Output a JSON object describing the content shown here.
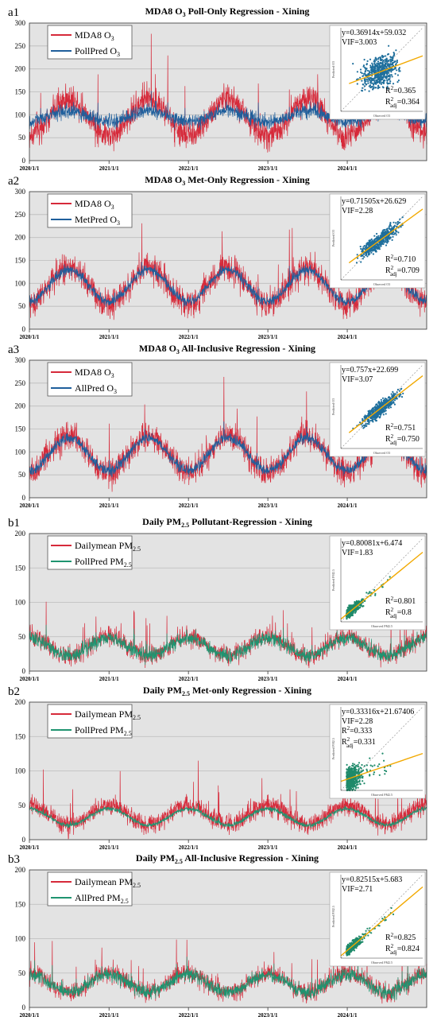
{
  "colors": {
    "plot_bg": "#e3e3e3",
    "grid": "#bcbcbc",
    "observed": "#d62a3a",
    "pred_blue": "#1f5f9c",
    "pred_green": "#1f9470",
    "scatter_blue": "#1f6f9c",
    "scatter_green": "#1f8a6a",
    "fit_line": "#f2a900",
    "ref_line": "#888888"
  },
  "x_ticks": [
    "2020/1/1",
    "2021/1/1",
    "2022/1/1",
    "2023/1/1",
    "2024/1/1"
  ],
  "chart_data": [
    {
      "panel_label": "a1",
      "type": "line",
      "title_parts": [
        "MDA8 O",
        "3",
        " Poll-Only Regression - Xining"
      ],
      "ylim": [
        0,
        300
      ],
      "yticks": [
        "0",
        "50",
        "100",
        "150",
        "200",
        "250",
        "300"
      ],
      "x_range": [
        "2020/1/1",
        "2024/12/31"
      ],
      "series": [
        {
          "legend": [
            "MDA8 O",
            "3",
            ""
          ],
          "color": "observed"
        },
        {
          "legend": [
            "PollPred O",
            "3",
            ""
          ],
          "color": "pred_blue"
        }
      ],
      "observed_profile": {
        "mean": 95,
        "amplitude": 40,
        "peak_month": 6,
        "noise": 22
      },
      "pred_profile": {
        "mean": 97,
        "amplitude": 12,
        "peak_month": 6,
        "noise": 14
      },
      "inset": {
        "equation": "y=0.36914x+59.032",
        "vif": "VIF=3.003",
        "r2": [
          "R",
          "2",
          "=0.365"
        ],
        "r2adj": [
          "R",
          "2",
          "adj",
          "=0.364"
        ],
        "xlabel": "Observed O3",
        "ylabel": "Predicted O3",
        "slope": 0.36914,
        "intercept": 59.032,
        "axis_max": 200,
        "scatter": 0.365,
        "color": "scatter_blue"
      }
    },
    {
      "panel_label": "a2",
      "type": "line",
      "title_parts": [
        "MDA8 O",
        "3",
        " Met-Only Regression - Xining"
      ],
      "ylim": [
        0,
        300
      ],
      "yticks": [
        "0",
        "50",
        "100",
        "150",
        "200",
        "250",
        "300"
      ],
      "x_range": [
        "2020/1/1",
        "2024/12/31"
      ],
      "series": [
        {
          "legend": [
            "MDA8 O",
            "3",
            ""
          ],
          "color": "observed"
        },
        {
          "legend": [
            "MetPred O",
            "3",
            ""
          ],
          "color": "pred_blue"
        }
      ],
      "observed_profile": {
        "mean": 95,
        "amplitude": 40,
        "peak_month": 6,
        "noise": 22
      },
      "pred_profile": {
        "mean": 95,
        "amplitude": 35,
        "peak_month": 6,
        "noise": 10
      },
      "inset": {
        "equation": "y=0.71505x+26.629",
        "vif": "VIF=2.28",
        "r2": [
          "R",
          "2",
          "=0.710"
        ],
        "r2adj": [
          "R",
          "2",
          "adj",
          "=0.709"
        ],
        "xlabel": "Observed O3",
        "ylabel": "Predicted O3",
        "slope": 0.71505,
        "intercept": 26.629,
        "axis_max": 200,
        "scatter": 0.71,
        "color": "scatter_blue"
      }
    },
    {
      "panel_label": "a3",
      "type": "line",
      "title_parts": [
        "MDA8 O",
        "3",
        " All-Inclusive Regression - Xining"
      ],
      "ylim": [
        0,
        300
      ],
      "yticks": [
        "0",
        "50",
        "100",
        "150",
        "200",
        "250",
        "300"
      ],
      "x_range": [
        "2020/1/1",
        "2024/12/31"
      ],
      "series": [
        {
          "legend": [
            "MDA8 O",
            "3",
            ""
          ],
          "color": "observed"
        },
        {
          "legend": [
            "AllPred O",
            "3",
            ""
          ],
          "color": "pred_blue"
        }
      ],
      "observed_profile": {
        "mean": 95,
        "amplitude": 40,
        "peak_month": 6,
        "noise": 22
      },
      "pred_profile": {
        "mean": 95,
        "amplitude": 36,
        "peak_month": 6,
        "noise": 11
      },
      "inset": {
        "equation": "y=0.757x+22.699",
        "vif": "VIF=3.07",
        "r2": [
          "R",
          "2",
          "=0.751"
        ],
        "r2adj": [
          "R",
          "2",
          "adj",
          "=0.750"
        ],
        "xlabel": "Observed O3",
        "ylabel": "Predicted O3",
        "slope": 0.757,
        "intercept": 22.699,
        "axis_max": 200,
        "scatter": 0.751,
        "color": "scatter_blue"
      }
    },
    {
      "panel_label": "b1",
      "type": "line",
      "title_parts": [
        "Daily PM",
        "2.5",
        " Pollutant-Regression - Xining"
      ],
      "ylim": [
        0,
        200
      ],
      "yticks": [
        "0",
        "50",
        "100",
        "150",
        "200"
      ],
      "x_range": [
        "2020/1/1",
        "2024/12/31"
      ],
      "series": [
        {
          "legend": [
            "Dailymean PM",
            "2.5",
            ""
          ],
          "color": "observed"
        },
        {
          "legend": [
            "PollPred PM",
            "2.5",
            ""
          ],
          "color": "pred_green"
        }
      ],
      "observed_profile": {
        "mean": 36,
        "amplitude": 14,
        "peak_month": 0,
        "noise": 10
      },
      "pred_profile": {
        "mean": 35,
        "amplitude": 13,
        "peak_month": 0,
        "noise": 9
      },
      "inset": {
        "equation": "y=0.80081x+6.474",
        "vif": "VIF=1.83",
        "r2": [
          "R",
          "2",
          "=0.801"
        ],
        "r2adj": [
          "R",
          "2",
          "adj",
          "=0.8"
        ],
        "xlabel": "Observed PM2.5",
        "ylabel": "Predicted PM2.5",
        "slope": 0.80081,
        "intercept": 6.474,
        "axis_max": 200,
        "scatter": 0.801,
        "color": "scatter_green"
      }
    },
    {
      "panel_label": "b2",
      "type": "line",
      "title_parts": [
        "Daily PM",
        "2.5",
        "  Met-only Regression - Xining"
      ],
      "ylim": [
        0,
        200
      ],
      "yticks": [
        "0",
        "50",
        "100",
        "150",
        "200"
      ],
      "x_range": [
        "2020/1/1",
        "2024/12/31"
      ],
      "series": [
        {
          "legend": [
            "Dailymean PM",
            "2.5",
            ""
          ],
          "color": "observed"
        },
        {
          "legend": [
            "PollPred PM",
            "2.5",
            ""
          ],
          "color": "pred_green"
        }
      ],
      "observed_profile": {
        "mean": 36,
        "amplitude": 14,
        "peak_month": 0,
        "noise": 10
      },
      "pred_profile": {
        "mean": 33,
        "amplitude": 12,
        "peak_month": 0,
        "noise": 3
      },
      "inset": {
        "equation": "y=0.33316x+21.67406",
        "vif": "VIF=2.28",
        "r2": [
          "R",
          "2",
          "=0.333"
        ],
        "r2adj": [
          "R",
          "2",
          "adj",
          "=0.331"
        ],
        "xlabel": "Observed PM2.5",
        "ylabel": "Predicted PM2.5",
        "slope": 0.33316,
        "intercept": 21.67406,
        "axis_max": 200,
        "scatter": 0.333,
        "color": "scatter_green"
      }
    },
    {
      "panel_label": "b3",
      "type": "line",
      "title_parts": [
        "Daily PM",
        "2.5",
        " All-Inclusive Regression - Xining"
      ],
      "ylim": [
        0,
        200
      ],
      "yticks": [
        "0",
        "50",
        "100",
        "150",
        "200"
      ],
      "x_range": [
        "2020/1/1",
        "2024/12/31"
      ],
      "series": [
        {
          "legend": [
            "Dailymean PM",
            "2.5",
            ""
          ],
          "color": "observed"
        },
        {
          "legend": [
            "AllPred PM",
            "2.5",
            ""
          ],
          "color": "pred_green"
        }
      ],
      "observed_profile": {
        "mean": 36,
        "amplitude": 14,
        "peak_month": 0,
        "noise": 10
      },
      "pred_profile": {
        "mean": 35,
        "amplitude": 13,
        "peak_month": 0,
        "noise": 9
      },
      "inset": {
        "equation": "y=0.82515x+5.683",
        "vif": "VIF=2.71",
        "r2": [
          "R",
          "2",
          "=0.825"
        ],
        "r2adj": [
          "R",
          "2",
          "adj",
          "=0.824"
        ],
        "xlabel": "Observed PM2.5",
        "ylabel": "Predicted PM2.5",
        "slope": 0.82515,
        "intercept": 5.683,
        "axis_max": 200,
        "scatter": 0.825,
        "color": "scatter_green"
      }
    }
  ]
}
